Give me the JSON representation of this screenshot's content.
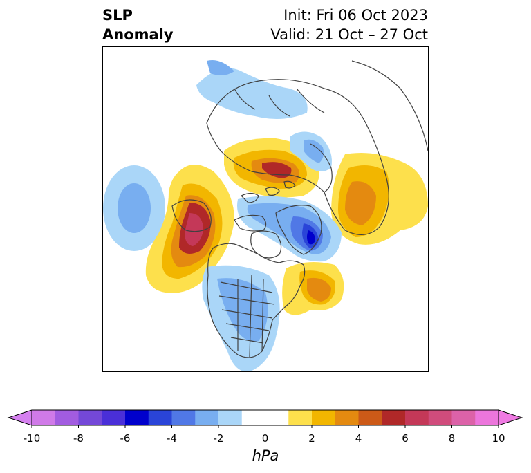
{
  "title": {
    "left_line1": "SLP",
    "left_line2": "Anomaly",
    "right_line1": "Init: Fri 06 Oct 2023",
    "right_line2": "Valid: 21 Oct – 27 Oct"
  },
  "colorbar": {
    "unit": "hPa",
    "min": -10,
    "max": 10,
    "step": 1,
    "extend": "both",
    "tick_labels": [
      "-10",
      "-8",
      "-6",
      "-4",
      "-2",
      "0",
      "2",
      "4",
      "6",
      "8",
      "10"
    ],
    "colors": [
      "#d07ae8",
      "#a25ce0",
      "#7448d8",
      "#4a2fd8",
      "#0000cc",
      "#2a44d8",
      "#5078e6",
      "#78aef0",
      "#aad6f8",
      "#ffffff",
      "#ffffff",
      "#fde04c",
      "#f2b600",
      "#e48a10",
      "#cc5a18",
      "#b02828",
      "#c43858",
      "#d04c7c",
      "#dc62a8",
      "#ec76dc"
    ],
    "under_color": "#d580ef",
    "over_color": "#ef7ae2"
  },
  "map": {
    "projection": "north-polar-stereographic",
    "variable": "sea-level-pressure-anomaly"
  }
}
